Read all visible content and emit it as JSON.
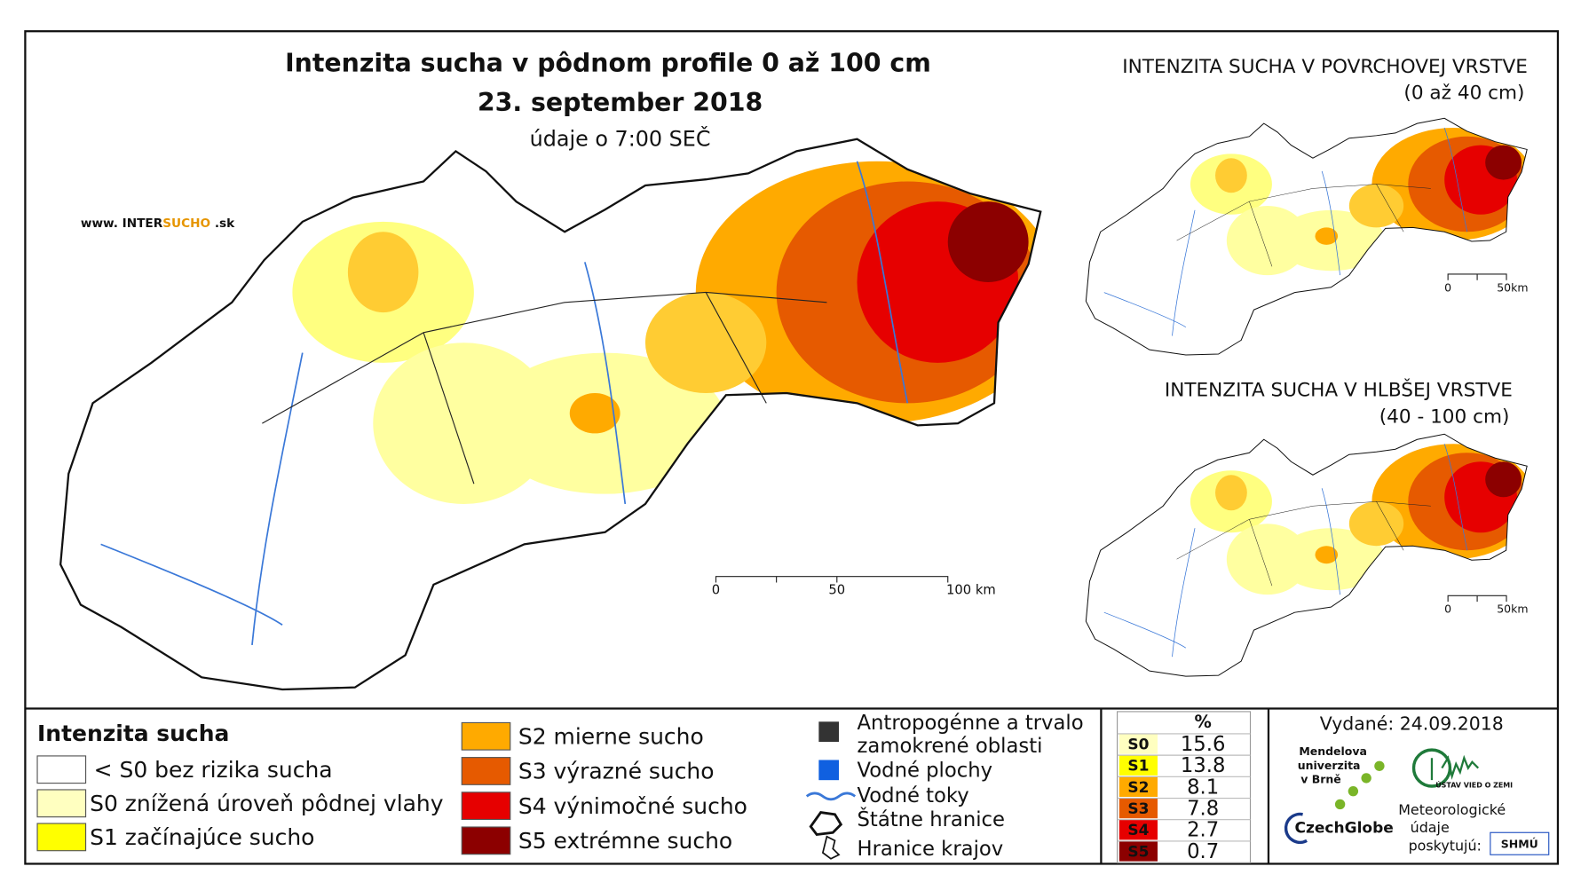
{
  "header": {
    "title": "Intenzita sucha v pôdnom profile 0 až 100 cm",
    "date": "23. september 2018",
    "time": "údaje o 7:00 SEČ"
  },
  "website": {
    "prefix": "www. INTER",
    "highlight": "SUCHO",
    "suffix": " .sk"
  },
  "main_scale": {
    "ticks": [
      "0",
      "50",
      "100 km"
    ]
  },
  "inset_top": {
    "title": "INTENZITA SUCHA V POVRCHOVEJ VRSTVE",
    "subtitle": "(0 až 40 cm)",
    "scale": [
      "0",
      "50km"
    ]
  },
  "inset_bottom": {
    "title": "INTENZITA SUCHA V HLBŠEJ VRSTVE",
    "subtitle": "(40 - 100 cm)",
    "scale": [
      "0",
      "50km"
    ]
  },
  "legend": {
    "title": "Intenzita sucha",
    "items": [
      {
        "label": "< S0 bez rizika sucha",
        "color": "#ffffff"
      },
      {
        "label": "S0 znížená úroveň pôdnej vlahy",
        "color": "#ffffc0"
      },
      {
        "label": "S1 začínajúce sucho",
        "color": "#ffff00"
      },
      {
        "label": "S2 mierne sucho",
        "color": "#ffaa00"
      },
      {
        "label": "S3 výrazné sucho",
        "color": "#e65a00"
      },
      {
        "label": "S4 výnimočné sucho",
        "color": "#e60000"
      },
      {
        "label": "S5 extrémne sucho",
        "color": "#8c0000"
      }
    ]
  },
  "symbols": {
    "anthropogenic": [
      "Antropogénne a trvalo",
      "zamokrené oblasti"
    ],
    "water_bodies": "Vodné plochy",
    "rivers": "Vodné toky",
    "state_border": "Štátne hranice",
    "regional_border": "Hranice krajov"
  },
  "stats": {
    "header": "%",
    "rows": [
      {
        "class": "S0",
        "value": 15.6,
        "color": "#ffffc0"
      },
      {
        "class": "S1",
        "value": 13.8,
        "color": "#ffff00"
      },
      {
        "class": "S2",
        "value": 8.1,
        "color": "#ffaa00"
      },
      {
        "class": "S3",
        "value": 7.8,
        "color": "#e65a00"
      },
      {
        "class": "S4",
        "value": 2.7,
        "color": "#e60000"
      },
      {
        "class": "S5",
        "value": 0.7,
        "color": "#8c0000"
      }
    ]
  },
  "issued": "Vydané: 24.09.2018",
  "logos": {
    "mendel": [
      "Mendelova",
      "univerzita",
      "v Brně"
    ],
    "czechglobe": "CzechGlobe",
    "ustav": "ÚSTAV VIED O ZEMI",
    "meteo": [
      "Meteorologické",
      "údaje",
      "poskytujú:"
    ],
    "shmu": "SHMÚ"
  }
}
